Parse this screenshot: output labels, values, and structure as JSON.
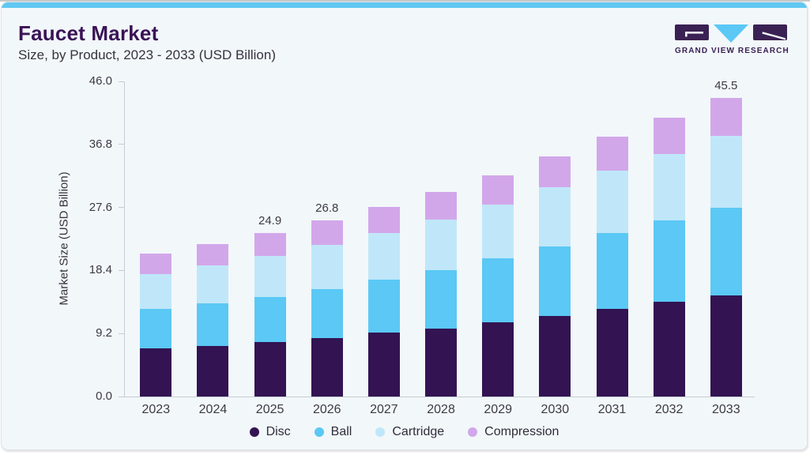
{
  "header": {
    "title": "Faucet Market",
    "subtitle": "Size, by Product, 2023 - 2033 (USD Billion)"
  },
  "logo": {
    "brand": "GRAND VIEW RESEARCH",
    "purple": "#3a2153",
    "blue": "#5bc8f5"
  },
  "colors": {
    "top_strip": "#61c8f2",
    "card_background": "#f2f7fa",
    "title_text": "#3a1356",
    "body_text": "#36333f",
    "axis_line": "#c6ccd4"
  },
  "chart_data": {
    "type": "bar",
    "stacked": true,
    "title": "Faucet Market",
    "subtitle": "Size, by Product, 2023 - 2033 (USD Billion)",
    "xlabel": "",
    "ylabel": "Market Size (USD Billion)",
    "ylim": [
      0,
      46.0
    ],
    "y_ticks": [
      "0.0",
      "9.2",
      "18.4",
      "27.6",
      "36.8",
      "46.0"
    ],
    "grid": false,
    "legend_position": "bottom",
    "categories": [
      "2023",
      "2024",
      "2025",
      "2026",
      "2027",
      "2028",
      "2029",
      "2030",
      "2031",
      "2032",
      "2033"
    ],
    "series": [
      {
        "name": "Disc",
        "color": "#331352",
        "values": [
          7.3,
          7.7,
          8.3,
          8.9,
          9.7,
          10.4,
          11.3,
          12.3,
          13.4,
          14.4,
          15.4
        ]
      },
      {
        "name": "Ball",
        "color": "#5bc8f5",
        "values": [
          6.1,
          6.5,
          6.9,
          7.5,
          8.1,
          8.9,
          9.8,
          10.6,
          11.5,
          12.4,
          13.3
        ]
      },
      {
        "name": "Cartridge",
        "color": "#c0e7f9",
        "values": [
          5.3,
          5.8,
          6.2,
          6.7,
          7.1,
          7.7,
          8.1,
          9.0,
          9.5,
          10.1,
          11.0
        ]
      },
      {
        "name": "Compression",
        "color": "#d2a7ea",
        "values": [
          3.1,
          3.2,
          3.5,
          3.7,
          4.0,
          4.1,
          4.5,
          4.7,
          5.2,
          5.6,
          5.8
        ]
      }
    ],
    "totals": [
      21.8,
      23.2,
      24.9,
      26.8,
      28.9,
      31.1,
      33.7,
      36.6,
      39.6,
      42.5,
      45.5
    ],
    "annotations": [
      {
        "category": "2025",
        "label": "24.9"
      },
      {
        "category": "2026",
        "label": "26.8"
      },
      {
        "category": "2033",
        "label": "45.5"
      }
    ]
  }
}
